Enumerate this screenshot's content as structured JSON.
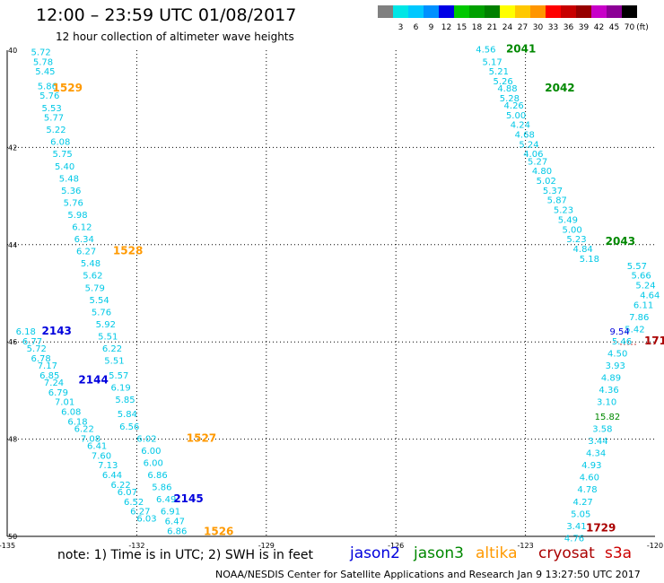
{
  "title": "12:00 – 23:59 UTC 01/08/2017",
  "subtitle": "12 hour collection of altimeter wave heights",
  "scale": {
    "unit_label": "(ft)",
    "bins": [
      {
        "label": "",
        "color": "#808080"
      },
      {
        "label": "3",
        "color": "#00e6e6"
      },
      {
        "label": "6",
        "color": "#00c8ff"
      },
      {
        "label": "9",
        "color": "#0090ff"
      },
      {
        "label": "12",
        "color": "#0000e6"
      },
      {
        "label": "15",
        "color": "#00c800"
      },
      {
        "label": "18",
        "color": "#00a000"
      },
      {
        "label": "21",
        "color": "#008000"
      },
      {
        "label": "24",
        "color": "#ffff00"
      },
      {
        "label": "27",
        "color": "#ffc800"
      },
      {
        "label": "30",
        "color": "#ff9600"
      },
      {
        "label": "33",
        "color": "#ff0000"
      },
      {
        "label": "36",
        "color": "#c80000"
      },
      {
        "label": "39",
        "color": "#960000"
      },
      {
        "label": "42",
        "color": "#c800c8"
      },
      {
        "label": "45",
        "color": "#8c0096"
      },
      {
        "label": "70",
        "color": "#000000"
      }
    ]
  },
  "axes": {
    "lon_ticks": [
      -135,
      -132,
      -129,
      -126,
      -123,
      -120
    ],
    "lon_tick_labels": [
      "-135",
      "-132",
      "-129",
      "-126",
      "-123",
      "-120"
    ],
    "lat_ticks": [
      40,
      42,
      44,
      46,
      48,
      50
    ],
    "lat_tick_labels": [
      "40",
      "42",
      "44",
      "46",
      "48",
      "50"
    ],
    "lon_range": [
      -135,
      -120
    ],
    "lat_range": [
      40,
      50
    ],
    "grid": "dotted"
  },
  "colors": {
    "jason2": "#0000dd",
    "jason3": "#008800",
    "altika": "#ff9900",
    "cryosat": "#aa0000",
    "s3a": "#cc0000",
    "swh_value": "#00c8e6"
  },
  "tracks": [
    {
      "satellite": "altika",
      "label": "1529",
      "label_pos": [
        -133.95,
        40.85
      ],
      "points": [
        [
          -134.45,
          40.1,
          "5.72"
        ],
        [
          -134.4,
          40.3,
          "5.78"
        ],
        [
          -134.35,
          40.5,
          "5.45"
        ],
        [
          -134.3,
          40.8,
          "5.86"
        ],
        [
          -134.25,
          41.0,
          "5.76"
        ],
        [
          -134.2,
          41.25,
          "5.53"
        ],
        [
          -134.15,
          41.45,
          "5.77"
        ],
        [
          -134.1,
          41.7,
          "5.22"
        ],
        [
          -134.0,
          41.95,
          "6.08"
        ],
        [
          -133.95,
          42.2,
          "5.75"
        ],
        [
          -133.9,
          42.45,
          "5.40"
        ],
        [
          -133.8,
          42.7,
          "5.48"
        ],
        [
          -133.75,
          42.95,
          "5.36"
        ],
        [
          -133.7,
          43.2,
          "5.76"
        ],
        [
          -133.6,
          43.45,
          "5.98"
        ],
        [
          -133.5,
          43.7,
          "6.12"
        ],
        [
          -133.45,
          43.95,
          "6.34"
        ]
      ]
    },
    {
      "satellite": "altika",
      "label": "1528",
      "label_pos": [
        -132.55,
        44.2
      ],
      "points": [
        [
          -133.4,
          44.2,
          "6.27"
        ],
        [
          -133.3,
          44.45,
          "5.48"
        ],
        [
          -133.25,
          44.7,
          "5.62"
        ],
        [
          -133.2,
          44.95,
          "5.79"
        ],
        [
          -133.1,
          45.2,
          "5.54"
        ],
        [
          -133.05,
          45.45,
          "5.76"
        ],
        [
          -132.95,
          45.7,
          "5.92"
        ],
        [
          -132.9,
          45.95,
          "5.51"
        ],
        [
          -132.8,
          46.2,
          "6.22"
        ],
        [
          -132.75,
          46.45,
          "5.51"
        ],
        [
          -132.65,
          46.75,
          "5.57"
        ],
        [
          -132.6,
          47.0,
          "6.19"
        ],
        [
          -132.5,
          47.25,
          "5.85"
        ],
        [
          -132.45,
          47.55,
          "5.84"
        ],
        [
          -132.4,
          47.8,
          "6.56"
        ]
      ]
    },
    {
      "satellite": "altika",
      "label": "1527",
      "label_pos": [
        -130.85,
        48.05
      ],
      "points": [
        [
          -132.0,
          48.05,
          "6.02"
        ],
        [
          -131.9,
          48.3,
          "6.00"
        ],
        [
          -131.85,
          48.55,
          "6.00"
        ],
        [
          -131.75,
          48.8,
          "6.86"
        ],
        [
          -131.65,
          49.05,
          "5.86"
        ],
        [
          -131.55,
          49.3,
          "6.49"
        ],
        [
          -131.45,
          49.55,
          "6.91"
        ],
        [
          -131.35,
          49.75,
          "6.47"
        ],
        [
          -131.3,
          49.95,
          "6.86"
        ]
      ]
    },
    {
      "satellite": "altika",
      "label": "1526",
      "label_pos": [
        -130.45,
        49.97
      ],
      "points": []
    },
    {
      "satellite": "jason2",
      "label": "2143",
      "label_pos": [
        -134.2,
        45.85
      ],
      "points": [
        [
          -134.8,
          45.85,
          "6.18"
        ],
        [
          -134.65,
          46.05,
          "6.77"
        ],
        [
          -134.55,
          46.2,
          "5.72"
        ],
        [
          -134.45,
          46.4,
          "6.78"
        ],
        [
          -134.3,
          46.55,
          "7.17"
        ],
        [
          -134.25,
          46.75,
          "6.85"
        ],
        [
          -134.15,
          46.9,
          "7.24"
        ],
        [
          -134.05,
          47.1,
          "6.79"
        ],
        [
          -133.9,
          47.3,
          "7.01"
        ],
        [
          -133.75,
          47.5,
          "6.08"
        ],
        [
          -133.6,
          47.7,
          "6.18"
        ],
        [
          -133.45,
          47.85,
          "6.22"
        ],
        [
          -133.3,
          48.05,
          "7.08"
        ],
        [
          -133.15,
          48.2,
          "6.41"
        ],
        [
          -133.05,
          48.4,
          "7.60"
        ],
        [
          -132.9,
          48.6,
          "7.13"
        ],
        [
          -132.8,
          48.8,
          "6.44"
        ],
        [
          -132.6,
          49.0,
          "6.22"
        ],
        [
          -132.45,
          49.15,
          "6.07"
        ],
        [
          -132.3,
          49.35,
          "6.52"
        ],
        [
          -132.15,
          49.55,
          "6.27"
        ],
        [
          -132.0,
          49.7,
          "6.03"
        ]
      ]
    },
    {
      "satellite": "jason2",
      "label": "2144",
      "label_pos": [
        -133.35,
        46.85
      ],
      "points": []
    },
    {
      "satellite": "jason2",
      "label": "2145",
      "label_pos": [
        -131.15,
        49.3
      ],
      "points": []
    },
    {
      "satellite": "jason3",
      "label": "2041",
      "label_pos": [
        -123.45,
        40.05
      ],
      "points": [
        [
          -124.15,
          40.05,
          "4.56"
        ],
        [
          -124.0,
          40.3,
          "5.17"
        ],
        [
          -123.85,
          40.5,
          "5.21"
        ],
        [
          -123.75,
          40.7,
          "5.26"
        ],
        [
          -123.65,
          40.85,
          "4.88"
        ],
        [
          -123.6,
          41.05,
          "5.28"
        ],
        [
          -123.5,
          41.2,
          "4.26"
        ],
        [
          -123.45,
          41.4,
          "5.00"
        ],
        [
          -123.35,
          41.6,
          "4.24"
        ],
        [
          -123.25,
          41.8,
          "4.68"
        ],
        [
          -123.15,
          42.0,
          "5.24"
        ],
        [
          -123.05,
          42.2,
          "4.06"
        ],
        [
          -122.95,
          42.35,
          "5.27"
        ],
        [
          -122.85,
          42.55,
          "4.80"
        ],
        [
          -122.75,
          42.75,
          "5.02"
        ],
        [
          -122.6,
          42.95,
          "5.37"
        ],
        [
          -122.5,
          43.15,
          "5.87"
        ],
        [
          -122.35,
          43.35,
          "5.23"
        ],
        [
          -122.25,
          43.55,
          "5.49"
        ],
        [
          -122.15,
          43.75,
          "5.00"
        ],
        [
          -122.05,
          43.95,
          "5.23"
        ],
        [
          -121.9,
          44.15,
          "4.84"
        ],
        [
          -121.75,
          44.35,
          "5.18"
        ]
      ]
    },
    {
      "satellite": "jason3",
      "label": "2042",
      "label_pos": [
        -122.55,
        40.85
      ],
      "points": []
    },
    {
      "satellite": "jason3",
      "label": "2043",
      "label_pos": [
        -121.15,
        44.0
      ],
      "points": []
    },
    {
      "satellite": "s3a",
      "label": "",
      "label_pos": [
        0,
        0
      ],
      "points": [
        [
          -120.65,
          44.5,
          "5.57"
        ],
        [
          -120.55,
          44.7,
          "5.66"
        ],
        [
          -120.45,
          44.9,
          "5.24"
        ],
        [
          -120.35,
          45.1,
          "4.64"
        ],
        [
          -120.5,
          45.3,
          "6.11"
        ],
        [
          -120.6,
          45.55,
          "7.86"
        ],
        [
          -120.7,
          45.8,
          "5.42"
        ],
        [
          -121.0,
          46.05,
          "5.46"
        ],
        [
          -121.1,
          46.3,
          "4.50"
        ],
        [
          -121.15,
          46.55,
          "3.93"
        ],
        [
          -121.25,
          46.8,
          "4.89"
        ],
        [
          -121.3,
          47.05,
          "4.36"
        ],
        [
          -121.35,
          47.3,
          "3.10"
        ],
        [
          -121.45,
          47.85,
          "3.58"
        ],
        [
          -121.55,
          48.1,
          "3.44"
        ],
        [
          -121.6,
          48.35,
          "4.34"
        ],
        [
          -121.7,
          48.6,
          "4.93"
        ],
        [
          -121.75,
          48.85,
          "4.60"
        ],
        [
          -121.8,
          49.1,
          "4.78"
        ],
        [
          -121.9,
          49.35,
          "4.27"
        ],
        [
          -121.95,
          49.6,
          "5.05"
        ],
        [
          -122.05,
          49.85,
          "3.41"
        ],
        [
          -122.1,
          50.1,
          "4.76"
        ]
      ]
    },
    {
      "satellite": "jason2",
      "label": "",
      "label_pos": [
        0,
        0
      ],
      "points": [
        [
          -121.05,
          45.85,
          "9.54"
        ]
      ]
    },
    {
      "satellite": "jason3",
      "label": "",
      "label_pos": [
        0,
        0
      ],
      "points": [
        [
          -121.4,
          47.6,
          "15.82"
        ]
      ]
    },
    {
      "satellite": "cryosat",
      "label": "1729",
      "label_pos": [
        -121.6,
        49.9
      ],
      "points": []
    },
    {
      "satellite": "cryosat",
      "label": "171",
      "label_pos": [
        -120.25,
        46.05
      ],
      "points": []
    }
  ],
  "footnote": "note: 1) Time is in UTC; 2) SWH is in feet",
  "legend": [
    {
      "name": "jason2",
      "color": "#0000dd"
    },
    {
      "name": "jason3",
      "color": "#008800"
    },
    {
      "name": "altika",
      "color": "#ff9900"
    },
    {
      "name": "cryosat",
      "color": "#aa0000"
    },
    {
      "name": "s3a",
      "color": "#cc0000"
    }
  ],
  "credit": "NOAA/NESDIS Center for Satellite Applications and Research   Jan  9 13:27:50 UTC 2017"
}
